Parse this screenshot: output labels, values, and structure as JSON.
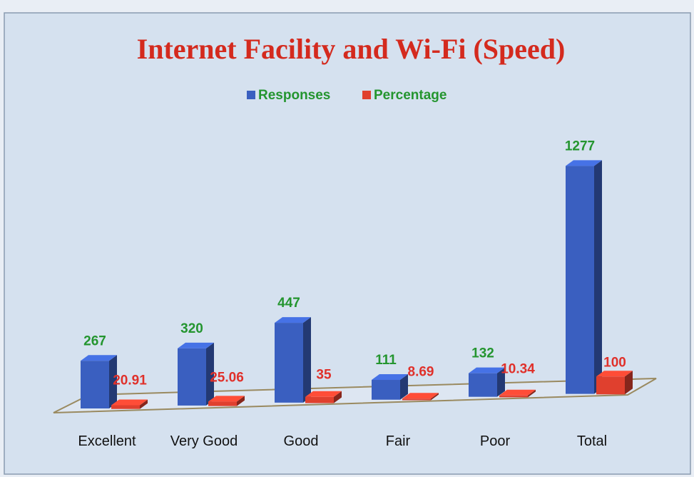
{
  "chart_data": {
    "type": "bar3d",
    "title": "Internet Facility and Wi-Fi (Speed)",
    "categories": [
      "Excellent",
      "Very Good",
      "Good",
      "Fair",
      "Poor",
      "Total"
    ],
    "series": [
      {
        "name": "Responses",
        "color": "#3a5fc0",
        "values": [
          267,
          320,
          447,
          111,
          132,
          1277
        ]
      },
      {
        "name": "Percentage",
        "color": "#e0402e",
        "values": [
          20.91,
          25.06,
          35,
          8.69,
          10.34,
          100
        ]
      }
    ],
    "legend": "top"
  }
}
